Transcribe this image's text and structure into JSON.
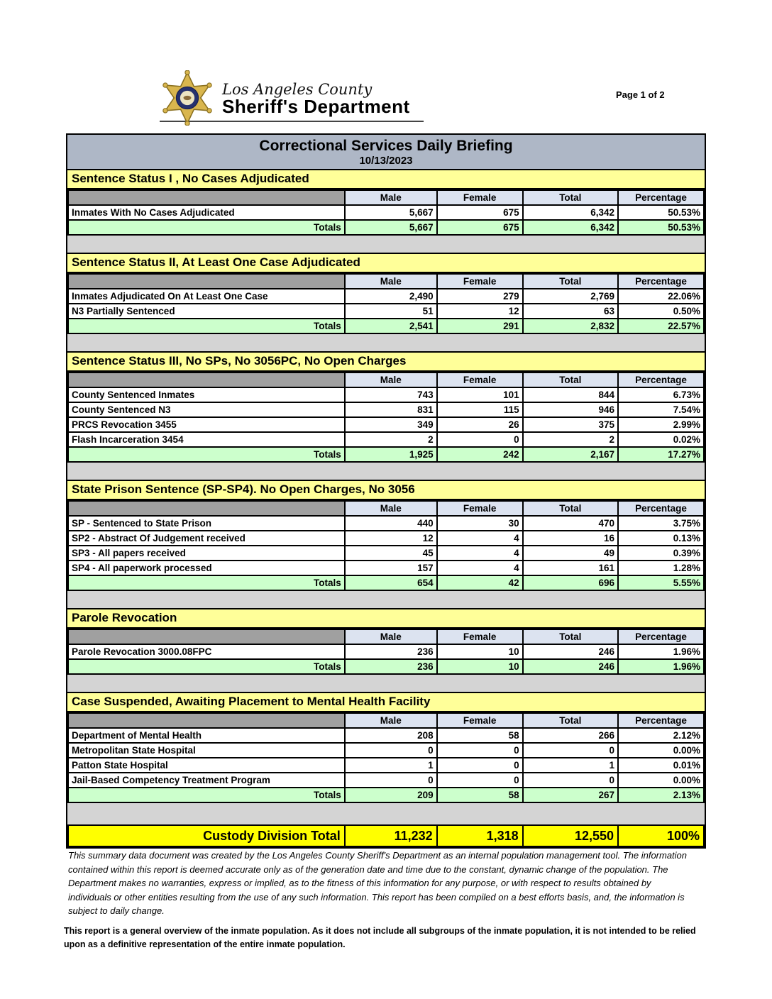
{
  "header": {
    "page_label": "Page 1 of 2",
    "logo_line1": "Los Angeles County",
    "logo_line2": "Sheriff's Department"
  },
  "report": {
    "title": "Correctional Services Daily Briefing",
    "date": "10/13/2023",
    "columns": [
      "Male",
      "Female",
      "Total",
      "Percentage"
    ],
    "sections": [
      {
        "header": "Sentence Status I , No Cases Adjudicated",
        "rows": [
          {
            "label": "Inmates With No Cases Adjudicated",
            "values": [
              "5,667",
              "675",
              "6,342",
              "50.53%"
            ]
          }
        ],
        "totals": {
          "label": "Totals",
          "values": [
            "5,667",
            "675",
            "6,342",
            "50.53%"
          ]
        }
      },
      {
        "header": "Sentence Status II, At Least One Case Adjudicated",
        "rows": [
          {
            "label": "Inmates Adjudicated On At Least One Case",
            "values": [
              "2,490",
              "279",
              "2,769",
              "22.06%"
            ]
          },
          {
            "label": "N3 Partially Sentenced",
            "values": [
              "51",
              "12",
              "63",
              "0.50%"
            ]
          }
        ],
        "totals": {
          "label": "Totals",
          "values": [
            "2,541",
            "291",
            "2,832",
            "22.57%"
          ]
        }
      },
      {
        "header": "Sentence Status III, No SPs, No 3056PC, No Open Charges",
        "rows": [
          {
            "label": "County Sentenced Inmates",
            "values": [
              "743",
              "101",
              "844",
              "6.73%"
            ]
          },
          {
            "label": "County Sentenced N3",
            "values": [
              "831",
              "115",
              "946",
              "7.54%"
            ]
          },
          {
            "label": "PRCS Revocation 3455",
            "values": [
              "349",
              "26",
              "375",
              "2.99%"
            ]
          },
          {
            "label": "Flash Incarceration 3454",
            "values": [
              "2",
              "0",
              "2",
              "0.02%"
            ]
          }
        ],
        "totals": {
          "label": "Totals",
          "values": [
            "1,925",
            "242",
            "2,167",
            "17.27%"
          ]
        }
      },
      {
        "header": "State Prison Sentence (SP-SP4). No Open Charges, No 3056",
        "rows": [
          {
            "label": "SP - Sentenced to State Prison",
            "values": [
              "440",
              "30",
              "470",
              "3.75%"
            ]
          },
          {
            "label": "SP2 - Abstract Of Judgement received",
            "values": [
              "12",
              "4",
              "16",
              "0.13%"
            ]
          },
          {
            "label": "SP3 - All papers received",
            "values": [
              "45",
              "4",
              "49",
              "0.39%"
            ]
          },
          {
            "label": "SP4 - All paperwork processed",
            "values": [
              "157",
              "4",
              "161",
              "1.28%"
            ]
          }
        ],
        "totals": {
          "label": "Totals",
          "values": [
            "654",
            "42",
            "696",
            "5.55%"
          ]
        }
      },
      {
        "header": "Parole Revocation",
        "rows": [
          {
            "label": "Parole Revocation 3000.08FPC",
            "values": [
              "236",
              "10",
              "246",
              "1.96%"
            ]
          }
        ],
        "totals": {
          "label": "Totals",
          "values": [
            "236",
            "10",
            "246",
            "1.96%"
          ]
        }
      },
      {
        "header": "Case Suspended, Awaiting Placement to Mental Health Facility",
        "rows": [
          {
            "label": "Department of Mental Health",
            "values": [
              "208",
              "58",
              "266",
              "2.12%"
            ]
          },
          {
            "label": "Metropolitan State Hospital",
            "values": [
              "0",
              "0",
              "0",
              "0.00%"
            ]
          },
          {
            "label": "Patton State Hospital",
            "values": [
              "1",
              "0",
              "1",
              "0.01%"
            ]
          },
          {
            "label": "Jail-Based Competency Treatment Program",
            "values": [
              "0",
              "0",
              "0",
              "0.00%"
            ]
          }
        ],
        "totals": {
          "label": "Totals",
          "values": [
            "209",
            "58",
            "267",
            "2.13%"
          ]
        }
      }
    ],
    "grand_total": {
      "label": "Custody Division Total",
      "values": [
        "11,232",
        "1,318",
        "12,550",
        "100%"
      ]
    }
  },
  "colors": {
    "title_band": "#aeb7c6",
    "section_header_yellow": "#ffff99",
    "column_header_blue": "#dce3f0",
    "corner_gray": "#a0a0a0",
    "totals_green": "#ccffcc",
    "grand_total_yellow": "#ffff00"
  },
  "footer": {
    "disclaimer": "This summary data document was created by the Los Angeles County Sheriff's Department as an internal population management tool.  The information contained within this report is deemed accurate only as of the generation date and time due to the constant, dynamic change of the population.  The Department makes no warranties, express or implied, as to the fitness of this information for any purpose, or with respect to results obtained by individuals or other entities resulting from the use of any such information.  This report has been compiled on a best efforts basis, and, the information is subject to daily change.",
    "note": "This report is a general overview of the inmate population.  As it does not include all subgroups of the inmate population, it is not intended to be relied upon as a definitive representation of the entire inmate population."
  }
}
